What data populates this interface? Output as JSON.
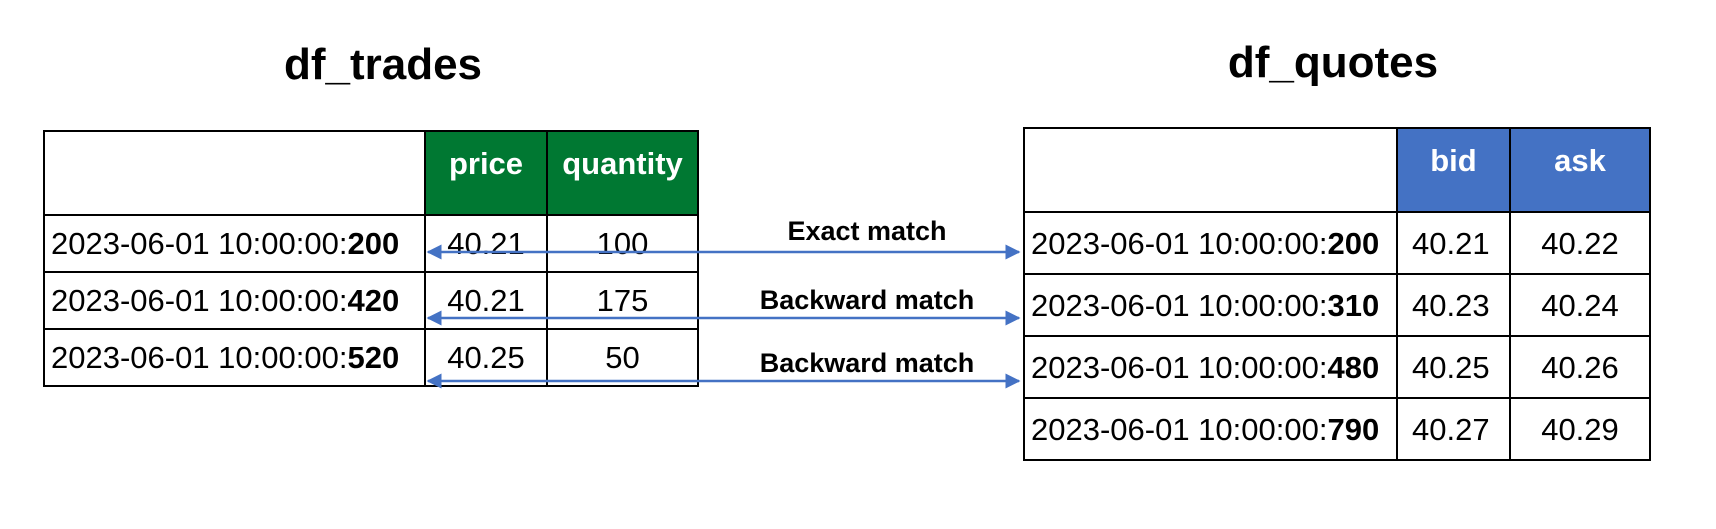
{
  "colors": {
    "trades_header": "#007832",
    "quotes_header": "#4472c4",
    "arrow": "#4472c4",
    "header_text": "#ffffff"
  },
  "trades": {
    "title": "df_trades",
    "columns": [
      "price",
      "quantity"
    ],
    "rows": [
      {
        "ts_prefix": "2023-06-01 10:00:00:",
        "ts_ms": "200",
        "price": "40.21",
        "quantity": "100"
      },
      {
        "ts_prefix": "2023-06-01 10:00:00:",
        "ts_ms": "420",
        "price": "40.21",
        "quantity": "175"
      },
      {
        "ts_prefix": "2023-06-01 10:00:00:",
        "ts_ms": "520",
        "price": "40.25",
        "quantity": "50"
      }
    ]
  },
  "quotes": {
    "title": "df_quotes",
    "columns": [
      "bid",
      "ask"
    ],
    "rows": [
      {
        "ts_prefix": "2023-06-01 10:00:00:",
        "ts_ms": "200",
        "bid": "40.21",
        "ask": "40.22"
      },
      {
        "ts_prefix": "2023-06-01 10:00:00:",
        "ts_ms": "310",
        "bid": "40.23",
        "ask": "40.24"
      },
      {
        "ts_prefix": "2023-06-01 10:00:00:",
        "ts_ms": "480",
        "bid": "40.25",
        "ask": "40.26"
      },
      {
        "ts_prefix": "2023-06-01 10:00:00:",
        "ts_ms": "790",
        "bid": "40.27",
        "ask": "40.29"
      }
    ]
  },
  "matches": [
    {
      "label": "Exact match",
      "trade_row": 0,
      "quote_row": 0
    },
    {
      "label": "Backward match",
      "trade_row": 1,
      "quote_row": 1
    },
    {
      "label": "Backward match",
      "trade_row": 2,
      "quote_row": 2
    }
  ]
}
